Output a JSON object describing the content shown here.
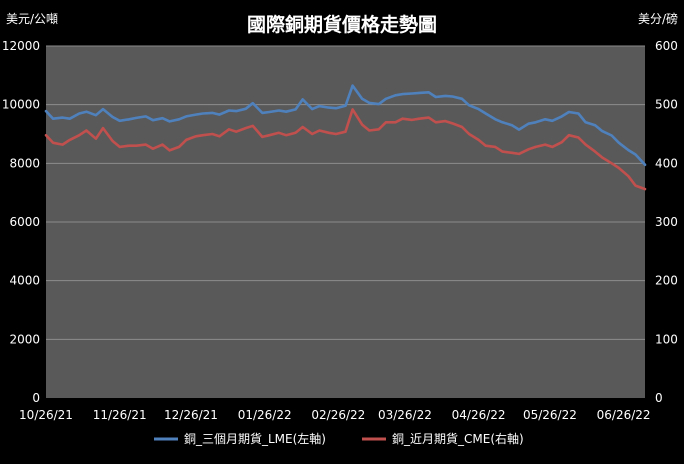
{
  "chart_data": {
    "type": "line",
    "title": "國際銅期貨價格走勢圖",
    "left_unit": "美元/公噸",
    "right_unit": "美分/磅",
    "x_tick_labels": [
      "10/26/21",
      "11/26/21",
      "12/26/21",
      "01/26/22",
      "02/26/22",
      "03/26/22",
      "04/26/22",
      "05/26/22",
      "06/26/22"
    ],
    "y_left": {
      "min": 0,
      "max": 12000,
      "ticks": [
        0,
        2000,
        4000,
        6000,
        8000,
        10000,
        12000
      ]
    },
    "y_right": {
      "min": 0,
      "max": 600,
      "ticks": [
        0,
        100,
        200,
        300,
        400,
        500,
        600
      ]
    },
    "grid": true,
    "legend_position": "bottom",
    "colors": {
      "plot_bg": "#595959",
      "grid": "#8c8c8c",
      "lme": "#4f81bd",
      "cme": "#c0504d"
    },
    "series": [
      {
        "name": "銅_三個月期貨_LME(左軸)",
        "axis": "left",
        "dates": [
          "10/26/21",
          "10/29/21",
          "11/02/21",
          "11/05/21",
          "11/09/21",
          "11/12/21",
          "11/16/21",
          "11/19/21",
          "11/23/21",
          "11/26/21",
          "11/30/21",
          "12/03/21",
          "12/07/21",
          "12/10/21",
          "12/14/21",
          "12/17/21",
          "12/21/21",
          "12/24/21",
          "12/28/21",
          "12/31/21",
          "01/04/22",
          "01/07/22",
          "01/11/22",
          "01/14/22",
          "01/18/22",
          "01/21/22",
          "01/25/22",
          "01/28/22",
          "02/01/22",
          "02/04/22",
          "02/08/22",
          "02/11/22",
          "02/15/22",
          "02/18/22",
          "02/22/22",
          "02/25/22",
          "03/01/22",
          "03/04/22",
          "03/08/22",
          "03/11/22",
          "03/15/22",
          "03/18/22",
          "03/22/22",
          "03/25/22",
          "03/29/22",
          "04/01/22",
          "04/05/22",
          "04/08/22",
          "04/12/22",
          "04/15/22",
          "04/19/22",
          "04/22/22",
          "04/26/22",
          "04/29/22",
          "05/03/22",
          "05/06/22",
          "05/10/22",
          "05/13/22",
          "05/17/22",
          "05/20/22",
          "05/24/22",
          "05/27/22",
          "05/31/22",
          "06/03/22",
          "06/07/22",
          "06/10/22",
          "06/14/22",
          "06/17/22",
          "06/21/22",
          "06/24/22",
          "06/28/22",
          "07/01/22",
          "07/05/22"
        ],
        "values": [
          9780,
          9520,
          9560,
          9520,
          9700,
          9760,
          9640,
          9850,
          9580,
          9450,
          9500,
          9550,
          9600,
          9470,
          9540,
          9430,
          9500,
          9600,
          9660,
          9700,
          9720,
          9660,
          9800,
          9780,
          9860,
          10050,
          9720,
          9750,
          9800,
          9760,
          9840,
          10180,
          9850,
          9950,
          9900,
          9880,
          9960,
          10650,
          10200,
          10060,
          10020,
          10200,
          10320,
          10360,
          10380,
          10400,
          10420,
          10260,
          10300,
          10280,
          10200,
          9980,
          9850,
          9700,
          9500,
          9400,
          9300,
          9150,
          9350,
          9400,
          9500,
          9450,
          9600,
          9750,
          9700,
          9400,
          9300,
          9100,
          8950,
          8700,
          8450,
          8300,
          7950
        ]
      },
      {
        "name": "銅_近月期貨_CME(右軸)",
        "axis": "right",
        "dates": [
          "10/26/21",
          "10/29/21",
          "11/02/21",
          "11/05/21",
          "11/09/21",
          "11/12/21",
          "11/16/21",
          "11/19/21",
          "11/23/21",
          "11/26/21",
          "11/30/21",
          "12/03/21",
          "12/07/21",
          "12/10/21",
          "12/14/21",
          "12/17/21",
          "12/21/21",
          "12/24/21",
          "12/28/21",
          "12/31/21",
          "01/04/22",
          "01/07/22",
          "01/11/22",
          "01/14/22",
          "01/18/22",
          "01/21/22",
          "01/25/22",
          "01/28/22",
          "02/01/22",
          "02/04/22",
          "02/08/22",
          "02/11/22",
          "02/15/22",
          "02/18/22",
          "02/22/22",
          "02/25/22",
          "03/01/22",
          "03/04/22",
          "03/08/22",
          "03/11/22",
          "03/15/22",
          "03/18/22",
          "03/22/22",
          "03/25/22",
          "03/29/22",
          "04/01/22",
          "04/05/22",
          "04/08/22",
          "04/12/22",
          "04/15/22",
          "04/19/22",
          "04/22/22",
          "04/26/22",
          "04/29/22",
          "05/03/22",
          "05/06/22",
          "05/10/22",
          "05/13/22",
          "05/17/22",
          "05/20/22",
          "05/24/22",
          "05/27/22",
          "05/31/22",
          "06/03/22",
          "06/07/22",
          "06/10/22",
          "06/14/22",
          "06/17/22",
          "06/21/22",
          "06/24/22",
          "06/28/22",
          "07/01/22",
          "07/05/22"
        ],
        "values": [
          448,
          435,
          432,
          440,
          448,
          456,
          442,
          460,
          438,
          428,
          430,
          430,
          432,
          425,
          432,
          422,
          428,
          440,
          446,
          448,
          450,
          446,
          458,
          454,
          460,
          464,
          445,
          448,
          452,
          448,
          452,
          462,
          450,
          456,
          452,
          450,
          454,
          492,
          466,
          456,
          458,
          470,
          470,
          476,
          474,
          476,
          478,
          470,
          472,
          468,
          462,
          450,
          440,
          430,
          428,
          420,
          418,
          416,
          424,
          428,
          432,
          428,
          436,
          448,
          444,
          432,
          420,
          410,
          400,
          392,
          378,
          362,
          356
        ]
      }
    ]
  }
}
